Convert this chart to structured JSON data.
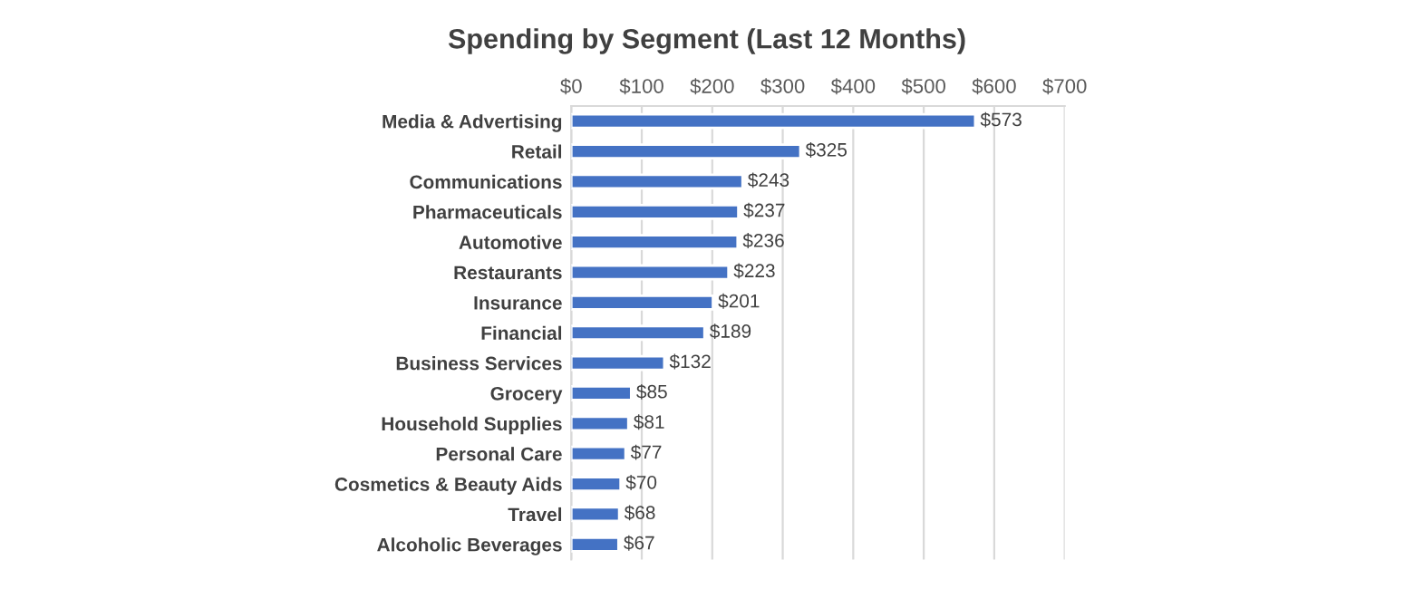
{
  "chart_data": {
    "type": "bar",
    "orientation": "horizontal",
    "title": "Spending by Segment (Last 12 Months)",
    "categories": [
      "Media & Advertising",
      "Retail",
      "Communications",
      "Pharmaceuticals",
      "Automotive",
      "Restaurants",
      "Insurance",
      "Financial",
      "Business Services",
      "Grocery",
      "Household Supplies",
      "Personal Care",
      "Cosmetics & Beauty Aids",
      "Travel",
      "Alcoholic Beverages"
    ],
    "values": [
      573,
      325,
      243,
      237,
      236,
      223,
      201,
      189,
      132,
      85,
      81,
      77,
      70,
      68,
      67
    ],
    "value_labels": [
      "$573",
      "$325",
      "$243",
      "$237",
      "$236",
      "$223",
      "$201",
      "$189",
      "$132",
      "$85",
      "$81",
      "$77",
      "$70",
      "$68",
      "$67"
    ],
    "color": "#4472c4",
    "xlim": [
      0,
      700
    ],
    "xticks": [
      {
        "value": 0,
        "label": "$0"
      },
      {
        "value": 100,
        "label": "$100"
      },
      {
        "value": 200,
        "label": "$200"
      },
      {
        "value": 300,
        "label": "$300"
      },
      {
        "value": 400,
        "label": "$400"
      },
      {
        "value": 500,
        "label": "$500"
      },
      {
        "value": 600,
        "label": "$600"
      },
      {
        "value": 700,
        "label": "$700"
      }
    ],
    "grid": "x"
  }
}
